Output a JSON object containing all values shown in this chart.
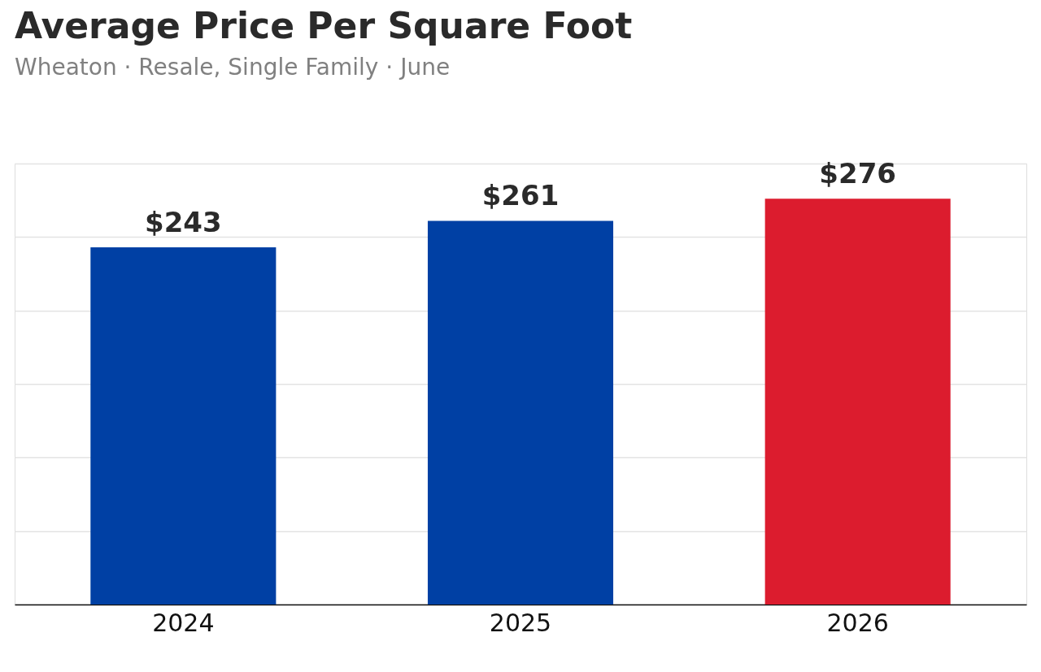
{
  "chart_data": {
    "type": "bar",
    "title": "Average Price Per Square Foot",
    "subtitle": "Wheaton  ·  Resale, Single Family  ·  June",
    "categories": [
      "2024",
      "2025",
      "2026"
    ],
    "values": [
      243,
      261,
      276
    ],
    "colors": [
      "#0040a4",
      "#0040a4",
      "#dc1c2e"
    ],
    "value_labels": [
      "$243",
      "$261",
      "$276"
    ],
    "ylim": [
      0,
      300
    ],
    "yticks": [
      {
        "value": 0,
        "label": null
      },
      {
        "value": 50,
        "label": null
      },
      {
        "value": 100,
        "label": null
      },
      {
        "value": 150,
        "label": null
      },
      {
        "value": 200,
        "label": null
      },
      {
        "value": 250,
        "label": null
      },
      {
        "value": 300,
        "label": null
      }
    ],
    "tick_labels": "x",
    "grid": "y",
    "legend": false
  }
}
